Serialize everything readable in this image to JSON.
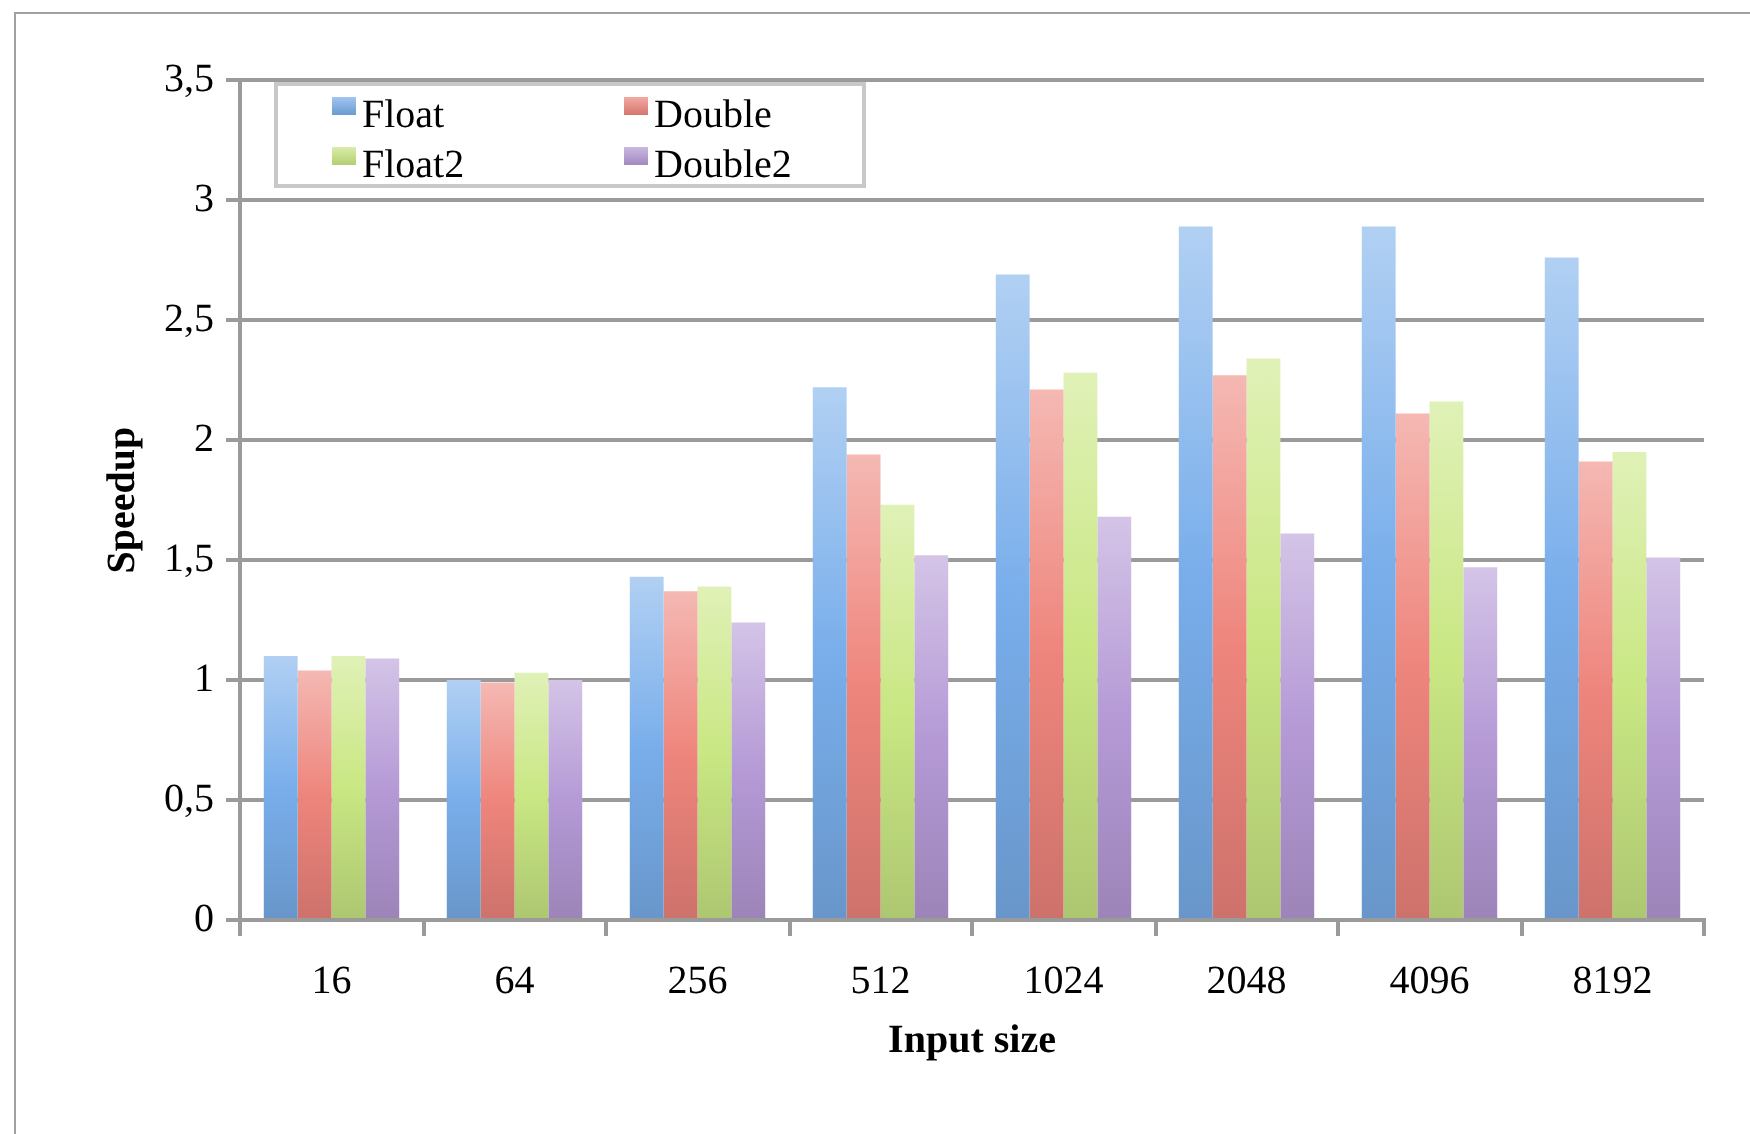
{
  "chart_data": {
    "type": "bar",
    "xlabel": "Input size",
    "ylabel": "Speedup",
    "categories": [
      "16",
      "64",
      "256",
      "512",
      "1024",
      "2048",
      "4096",
      "8192"
    ],
    "series": [
      {
        "name": "Float",
        "color": "#79aeeb",
        "values": [
          1.1,
          1.0,
          1.43,
          2.22,
          2.69,
          2.89,
          2.89,
          2.76
        ]
      },
      {
        "name": "Double",
        "color": "#ee857c",
        "values": [
          1.04,
          0.99,
          1.37,
          1.94,
          2.21,
          2.27,
          2.11,
          1.91
        ]
      },
      {
        "name": "Float2",
        "color": "#c9e783",
        "values": [
          1.1,
          1.03,
          1.39,
          1.73,
          2.28,
          2.34,
          2.16,
          1.95
        ]
      },
      {
        "name": "Double2",
        "color": "#b59ad6",
        "values": [
          1.09,
          1.0,
          1.24,
          1.52,
          1.68,
          1.61,
          1.47,
          1.51
        ]
      }
    ],
    "ylim": [
      0,
      3.5
    ],
    "yticks": [
      0,
      {
        "value": 0.5,
        "label": "0,5"
      },
      1,
      {
        "value": 1.5,
        "label": "1,5"
      },
      2,
      {
        "value": 2.5,
        "label": "2,5"
      },
      3,
      {
        "value": 3.5,
        "label": "3,5"
      }
    ],
    "grid": "y",
    "legend": "top left"
  }
}
